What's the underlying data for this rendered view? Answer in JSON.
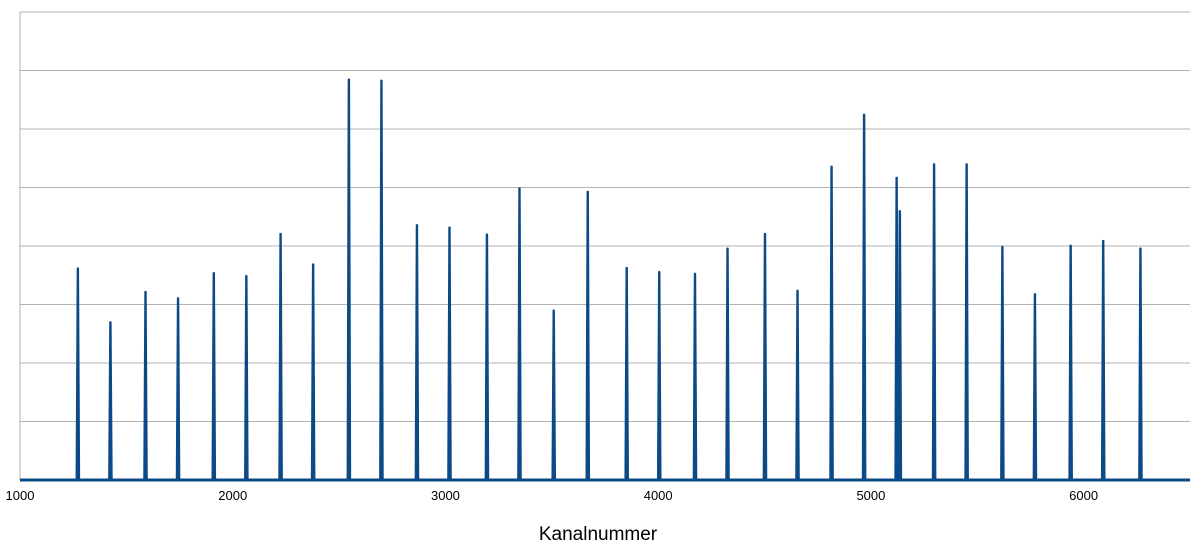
{
  "chart_data": {
    "type": "line",
    "xlabel": "Kanalnummer",
    "ylabel": "",
    "xlim": [
      1000,
      6500
    ],
    "ylim": [
      0,
      8
    ],
    "xticks": [
      1000,
      2000,
      3000,
      4000,
      5000,
      6000
    ],
    "grid": true,
    "legend": "none",
    "colors": {
      "series": "#0b4a86",
      "grid": "#b3b3b3",
      "axis": "#b3b3b3"
    },
    "series": [
      {
        "peaks": [
          {
            "x": 1272,
            "y": 3.62
          },
          {
            "x": 1425,
            "y": 2.7
          },
          {
            "x": 1590,
            "y": 3.22
          },
          {
            "x": 1743,
            "y": 3.11
          },
          {
            "x": 1911,
            "y": 3.54
          },
          {
            "x": 2064,
            "y": 3.49
          },
          {
            "x": 2225,
            "y": 4.21
          },
          {
            "x": 2378,
            "y": 3.69
          },
          {
            "x": 2546,
            "y": 6.85
          },
          {
            "x": 2699,
            "y": 6.83
          },
          {
            "x": 2866,
            "y": 4.36
          },
          {
            "x": 3019,
            "y": 4.32
          },
          {
            "x": 3195,
            "y": 4.2
          },
          {
            "x": 3348,
            "y": 4.99
          },
          {
            "x": 3509,
            "y": 2.9
          },
          {
            "x": 3669,
            "y": 4.93
          },
          {
            "x": 3852,
            "y": 3.63
          },
          {
            "x": 4005,
            "y": 3.56
          },
          {
            "x": 4173,
            "y": 3.53
          },
          {
            "x": 4326,
            "y": 3.96
          },
          {
            "x": 4502,
            "y": 4.21
          },
          {
            "x": 4655,
            "y": 3.24
          },
          {
            "x": 4815,
            "y": 5.36
          },
          {
            "x": 4968,
            "y": 6.25
          },
          {
            "x": 5121,
            "y": 5.17
          },
          {
            "x": 5136,
            "y": 4.6
          },
          {
            "x": 5297,
            "y": 5.4
          },
          {
            "x": 5450,
            "y": 5.4
          },
          {
            "x": 5618,
            "y": 3.99
          },
          {
            "x": 5771,
            "y": 3.18
          },
          {
            "x": 5939,
            "y": 4.01
          },
          {
            "x": 6092,
            "y": 4.09
          },
          {
            "x": 6267,
            "y": 3.96
          }
        ]
      }
    ]
  }
}
